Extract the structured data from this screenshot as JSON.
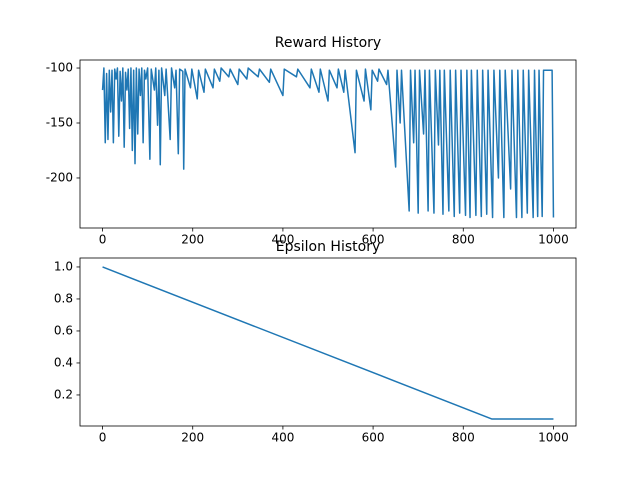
{
  "chart_data": [
    {
      "type": "line",
      "title": "Reward History",
      "color": "#1f77b4",
      "x": [
        0,
        3,
        6,
        9,
        12,
        15,
        18,
        21,
        24,
        27,
        30,
        33,
        36,
        39,
        42,
        45,
        48,
        51,
        54,
        57,
        60,
        63,
        66,
        69,
        72,
        75,
        78,
        81,
        84,
        87,
        90,
        93,
        96,
        100,
        105,
        108,
        115,
        118,
        122,
        125,
        128,
        131,
        138,
        141,
        150,
        153,
        160,
        163,
        168,
        171,
        178,
        180,
        183,
        195,
        198,
        210,
        213,
        225,
        228,
        245,
        248,
        260,
        263,
        280,
        283,
        300,
        303,
        320,
        323,
        345,
        348,
        370,
        373,
        400,
        403,
        430,
        433,
        460,
        463,
        480,
        483,
        500,
        503,
        520,
        523,
        535,
        538,
        560,
        563,
        580,
        583,
        595,
        598,
        610,
        613,
        630,
        633,
        650,
        653,
        660,
        663,
        680,
        683,
        690,
        693,
        700,
        703,
        712,
        715,
        722,
        725,
        735,
        738,
        745,
        748,
        755,
        758,
        768,
        771,
        780,
        783,
        792,
        795,
        805,
        808,
        815,
        818,
        828,
        831,
        840,
        843,
        852,
        855,
        865,
        868,
        878,
        881,
        890,
        893,
        905,
        908,
        918,
        921,
        930,
        933,
        942,
        945,
        955,
        958,
        965,
        968,
        975,
        978,
        990,
        997,
        1000
      ],
      "values": [
        -120,
        -100,
        -168,
        -105,
        -165,
        -102,
        -140,
        -102,
        -168,
        -101,
        -110,
        -100,
        -162,
        -103,
        -130,
        -100,
        -172,
        -104,
        -120,
        -101,
        -155,
        -100,
        -175,
        -102,
        -187,
        -100,
        -160,
        -101,
        -125,
        -100,
        -168,
        -102,
        -110,
        -100,
        -183,
        -101,
        -120,
        -100,
        -152,
        -102,
        -188,
        -100,
        -125,
        -101,
        -165,
        -100,
        -118,
        -102,
        -178,
        -101,
        -103,
        -192,
        -101,
        -118,
        -101,
        -128,
        -102,
        -122,
        -101,
        -118,
        -101,
        -112,
        -100,
        -108,
        -101,
        -115,
        -101,
        -110,
        -100,
        -108,
        -101,
        -113,
        -101,
        -125,
        -101,
        -108,
        -101,
        -118,
        -101,
        -122,
        -101,
        -130,
        -102,
        -118,
        -101,
        -122,
        -102,
        -177,
        -102,
        -130,
        -101,
        -138,
        -102,
        -112,
        -101,
        -115,
        -102,
        -190,
        -102,
        -150,
        -102,
        -230,
        -102,
        -168,
        -102,
        -232,
        -102,
        -160,
        -102,
        -230,
        -102,
        -232,
        -102,
        -170,
        -102,
        -233,
        -102,
        -230,
        -102,
        -235,
        -102,
        -232,
        -102,
        -234,
        -102,
        -236,
        -102,
        -234,
        -102,
        -235,
        -102,
        -233,
        -102,
        -236,
        -102,
        -200,
        -102,
        -236,
        -102,
        -210,
        -102,
        -236,
        -102,
        -236,
        -102,
        -232,
        -102,
        -236,
        -102,
        -235,
        -102,
        -235,
        -102,
        -102,
        -102,
        -236
      ],
      "xlim": [
        -50,
        1050
      ],
      "xticks": [
        0,
        200,
        400,
        600,
        800,
        1000
      ],
      "ylim": [
        -245.5,
        -92.7
      ],
      "yticks": [
        -200,
        -150,
        -100
      ]
    },
    {
      "type": "line",
      "title": "Epsilon History",
      "color": "#1f77b4",
      "x": [
        0,
        863,
        1000
      ],
      "values": [
        1,
        0.05,
        0.05
      ],
      "xlim": [
        -50,
        1050
      ],
      "xticks": [
        0,
        200,
        400,
        600,
        800,
        1000
      ],
      "ylim": [
        0.006,
        1.056
      ],
      "yticks": [
        0.2,
        0.4,
        0.6,
        0.8,
        {
          "value": 1,
          "label": "1.0"
        }
      ]
    }
  ]
}
